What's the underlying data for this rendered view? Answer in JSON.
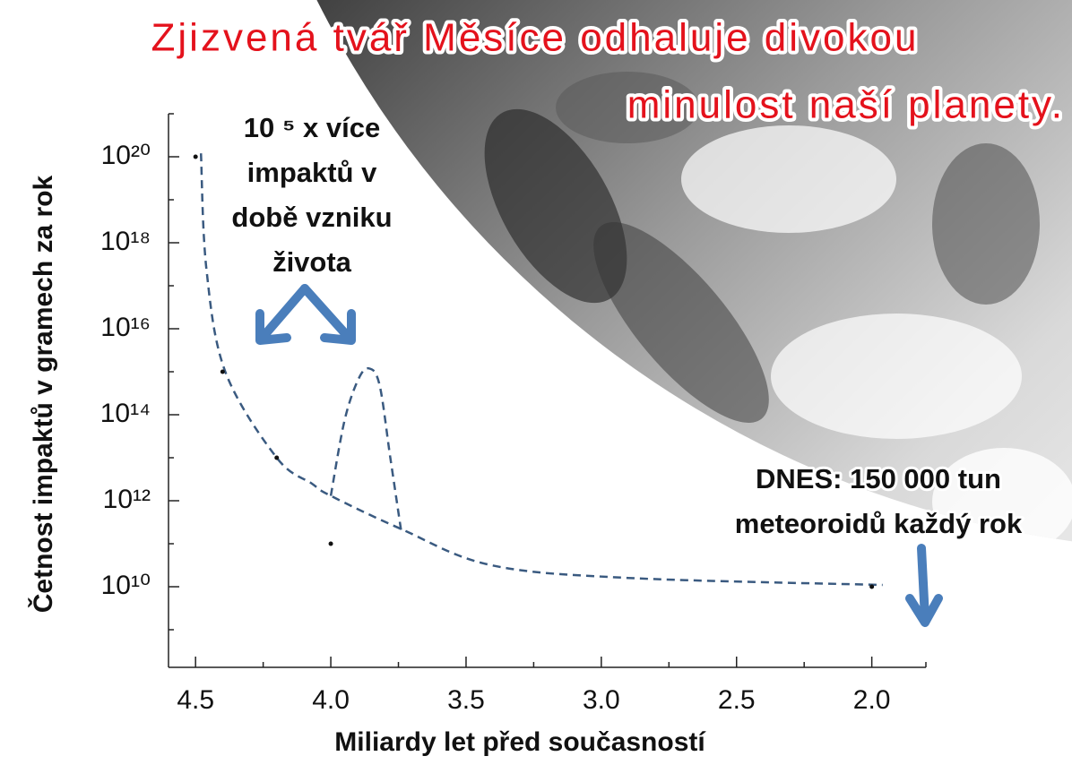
{
  "chart_data": {
    "type": "line",
    "title_lines": [
      "Zjizvená tvář Měsíce odhaluje divokou",
      "minulost naší planety."
    ],
    "xlabel": "Miliardy let před současností",
    "ylabel": "Četnost impaktů v gramech za rok",
    "xlim": [
      4.6,
      1.8
    ],
    "ylim": [
      100000000.0,
      1e+21
    ],
    "log_y": true,
    "xticks": [
      4.5,
      {
        "value": 4,
        "label": "4.0"
      },
      3.5,
      {
        "value": 3,
        "label": "3.0"
      },
      2.5,
      {
        "value": 2,
        "label": "2.0"
      }
    ],
    "xminorticks": [
      4.25,
      3.75,
      3.25,
      2.75,
      2.25,
      1.8
    ],
    "yticks": [
      {
        "value": 10000000000.0,
        "label": "10¹⁰"
      },
      {
        "value": 1000000000000.0,
        "label": "10¹²"
      },
      {
        "value": 100000000000000.0,
        "label": "10¹⁴"
      },
      {
        "value": 1e+16,
        "label": "10¹⁶"
      },
      {
        "value": 1e+18,
        "label": "10¹⁸"
      },
      {
        "value": 1e+20,
        "label": "10²⁰"
      }
    ],
    "yminorticks": [
      1000000000.0,
      100000000000.0,
      10000000000000.0,
      1000000000000000.0,
      1e+17,
      1e+19,
      1e+21
    ],
    "series": [
      {
        "color": "#3a5a80",
        "dash": true,
        "x": [
          4.48,
          4.46,
          4.39,
          4.2,
          4.07,
          4.0,
          3.74,
          3.41,
          2.9,
          1.96
        ],
        "values": [
          1.2e+20,
          2.5e+17,
          1000000000000000.0,
          10000000000000.0,
          2500000000000.0,
          1300000000000.0,
          220000000000.0,
          32000000000.0,
          16000000000.0,
          11000000000.0
        ]
      },
      {
        "color": "#3a5a80",
        "dash": true,
        "x": [
          4.0,
          3.95,
          3.9,
          3.86,
          3.82,
          3.78,
          3.74
        ],
        "values": [
          1300000000000.0,
          70000000000000.0,
          630000000000000.0,
          1200000000000000.0,
          500000000000000.0,
          10000000000000.0,
          200000000000.0
        ]
      },
      {
        "color": "#111111",
        "marker": "dot",
        "x": [
          4.5,
          4.4,
          4.2,
          4.0,
          2.0
        ],
        "values": [
          1e+20,
          1000000000000000.0,
          10000000000000.0,
          100000000000.0,
          10000000000.0
        ]
      }
    ],
    "annotations": [
      {
        "lines": [
          "10 ⁵ x více",
          "impaktů v",
          "době vzniku",
          "života"
        ]
      },
      {
        "lines": [
          "DNES: 150 000 tun",
          "meteoroidů každý rok"
        ]
      }
    ]
  }
}
